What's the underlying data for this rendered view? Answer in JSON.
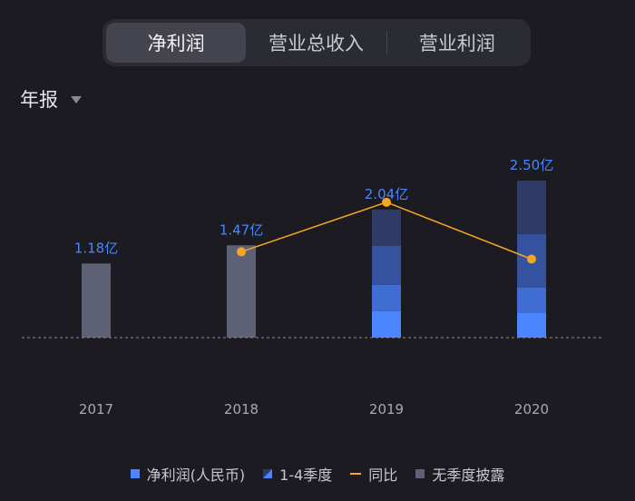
{
  "tabs": [
    {
      "label": "净利润",
      "active": true
    },
    {
      "label": "营业总收入",
      "active": false
    },
    {
      "label": "营业利润",
      "active": false
    }
  ],
  "period": {
    "label": "年报"
  },
  "colors": {
    "net_profit": "#4a86ff",
    "q1": "#4a86ff",
    "q2": "#3f6dd1",
    "q3": "#34529e",
    "q4": "#2d3b66",
    "no_quarter": "#5e6075",
    "yoy": "#f5a623",
    "value_label": "#4a86ff"
  },
  "legend": [
    {
      "label": "净利润(人民币)",
      "swatch": "net_profit"
    },
    {
      "label": "1-4季度",
      "swatch": "quarters"
    },
    {
      "label": "同比",
      "swatch": "yoy"
    },
    {
      "label": "无季度披露",
      "swatch": "no_quarter"
    }
  ],
  "chart_data": {
    "type": "bar",
    "categories": [
      "2017",
      "2018",
      "2019",
      "2020"
    ],
    "unit": "亿",
    "values": [
      1.18,
      1.47,
      2.04,
      2.5
    ],
    "value_labels": [
      "1.18亿",
      "1.47亿",
      "2.04亿",
      "2.50亿"
    ],
    "quarter_breakdown": [
      null,
      null,
      [
        0.42,
        0.42,
        0.62,
        0.58
      ],
      [
        0.4,
        0.4,
        0.85,
        0.85
      ]
    ],
    "series": [
      {
        "name": "净利润(人民币)",
        "values": [
          1.18,
          1.47,
          2.04,
          2.5
        ]
      },
      {
        "name": "同比",
        "type": "line",
        "values": [
          null,
          24.6,
          38.8,
          22.5
        ]
      }
    ],
    "ylim": [
      0,
      2.5
    ],
    "legend_position": "bottom"
  }
}
